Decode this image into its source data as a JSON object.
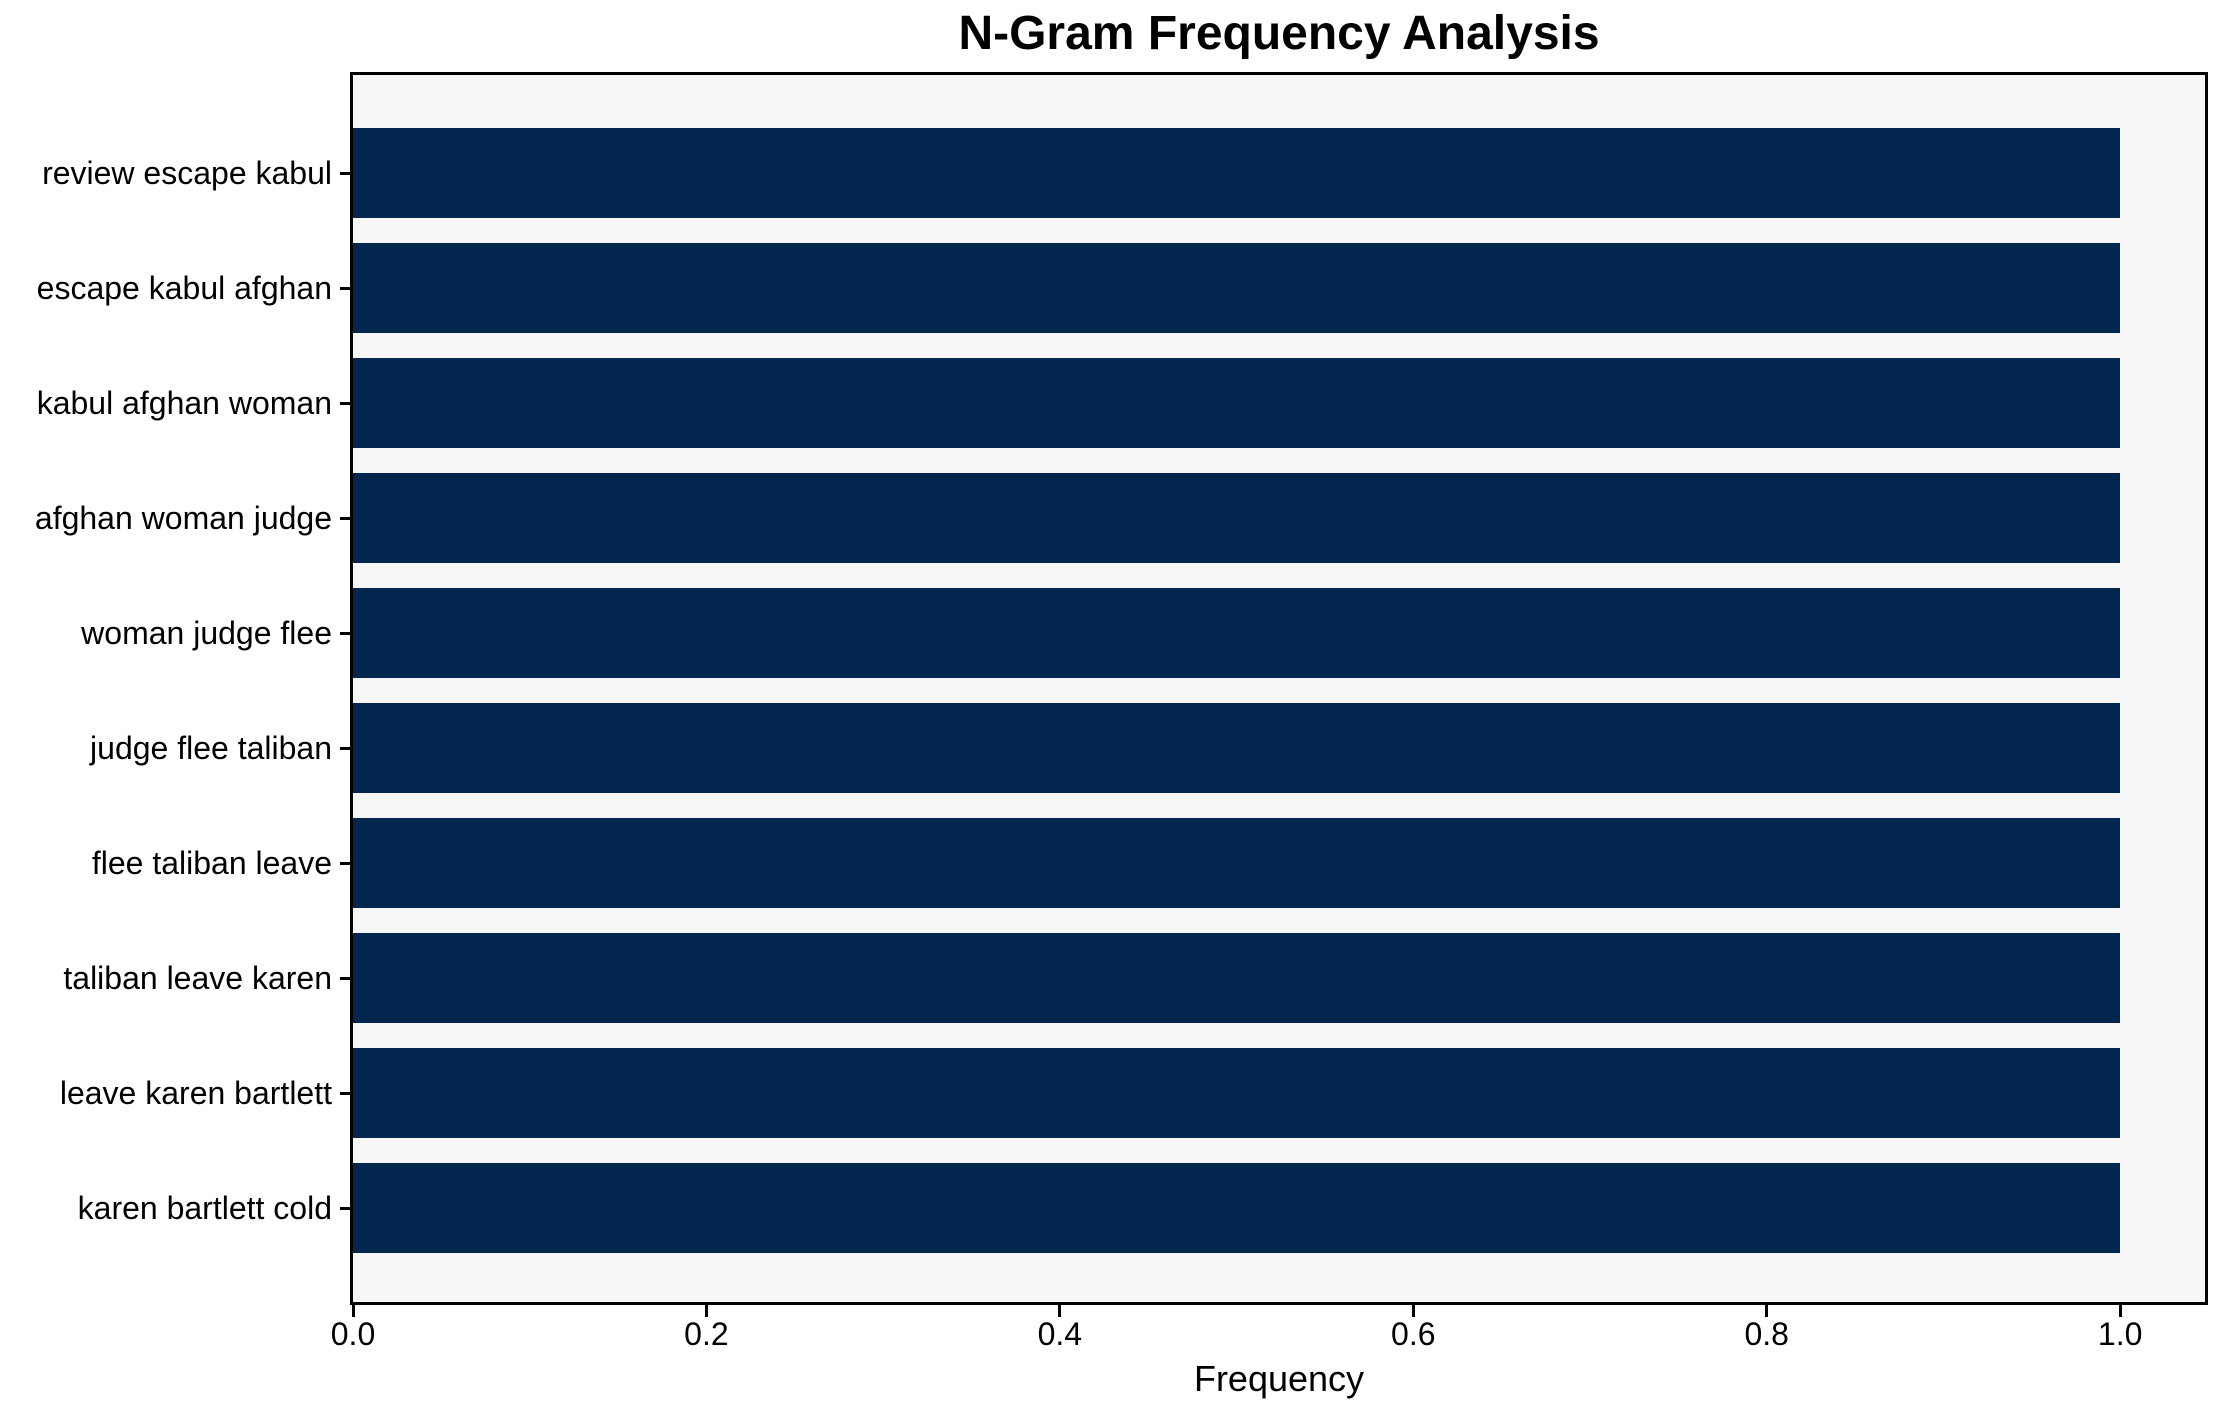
{
  "chart_data": {
    "type": "bar",
    "orientation": "horizontal",
    "title": "N-Gram Frequency Analysis",
    "xlabel": "Frequency",
    "ylabel": "",
    "categories": [
      "review escape kabul",
      "escape kabul afghan",
      "kabul afghan woman",
      "afghan woman judge",
      "woman judge flee",
      "judge flee taliban",
      "flee taliban leave",
      "taliban leave karen",
      "leave karen bartlett",
      "karen bartlett cold"
    ],
    "values": [
      1.0,
      1.0,
      1.0,
      1.0,
      1.0,
      1.0,
      1.0,
      1.0,
      1.0,
      1.0
    ],
    "x_ticks": [
      0.0,
      0.2,
      0.4,
      0.6,
      0.8,
      1.0
    ],
    "x_tick_labels": [
      "0.0",
      "0.2",
      "0.4",
      "0.6",
      "0.8",
      "1.0"
    ],
    "xlim": [
      0,
      1.048
    ],
    "bar_color": "#02264e",
    "plot_bg_color": "#f7f7f7",
    "figure_bg_color": "#ffffff",
    "spine_color": "#000000",
    "grid": false
  }
}
